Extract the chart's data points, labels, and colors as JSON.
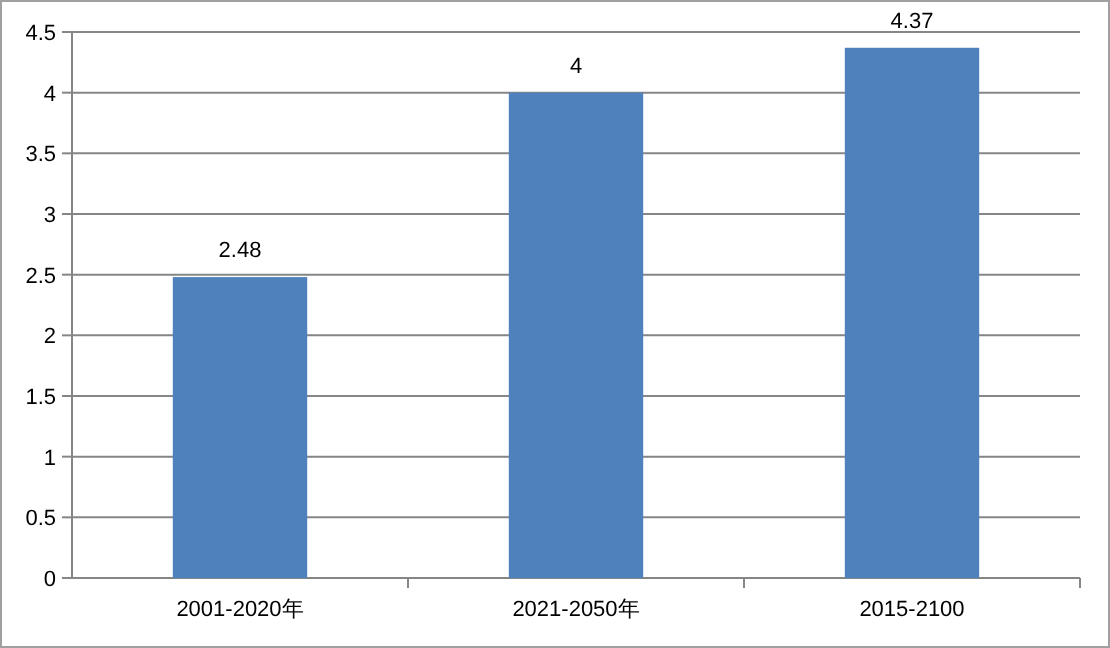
{
  "chart_data": {
    "type": "bar",
    "categories": [
      "2001-2020年",
      "2021-2050年",
      "2015-2100"
    ],
    "values": [
      2.48,
      4,
      4.37
    ],
    "color": "#4f81bd",
    "ylim": [
      0,
      4.5
    ],
    "yticks": [
      0,
      0.5,
      1,
      1.5,
      2,
      2.5,
      3,
      3.5,
      4,
      4.5
    ],
    "grid": "y",
    "data_labels": true
  }
}
